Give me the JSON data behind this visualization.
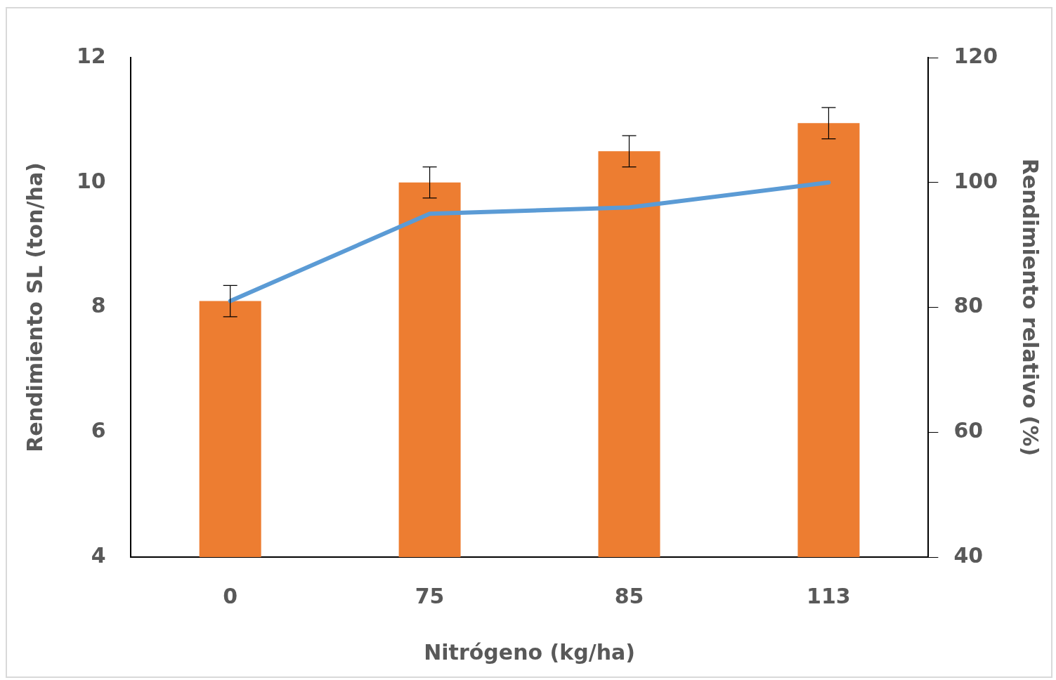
{
  "chart_data": {
    "type": "bar",
    "xlabel": "Nitrógeno (kg/ha)",
    "ylabel": "Rendimiento SL (ton/ha)",
    "y2label": "Rendimiento relativo (%)",
    "categories": [
      "0",
      "75",
      "85",
      "113"
    ],
    "series": [
      {
        "color": "#ed7d31",
        "values": [
          8.1,
          10.0,
          10.5,
          10.95
        ],
        "errors": [
          0.25,
          0.25,
          0.25,
          0.25
        ]
      },
      {
        "type": "line",
        "axis": "y2",
        "color": "#5b9bd5",
        "values": [
          81,
          95,
          96,
          100
        ]
      }
    ],
    "ylim": [
      4,
      12
    ],
    "yticks": [
      4,
      6,
      8,
      10,
      12
    ],
    "y2lim": [
      40,
      120
    ],
    "y2ticks": [
      40,
      60,
      80,
      100,
      120
    ],
    "grid": false,
    "legend": false,
    "marker": "none"
  }
}
